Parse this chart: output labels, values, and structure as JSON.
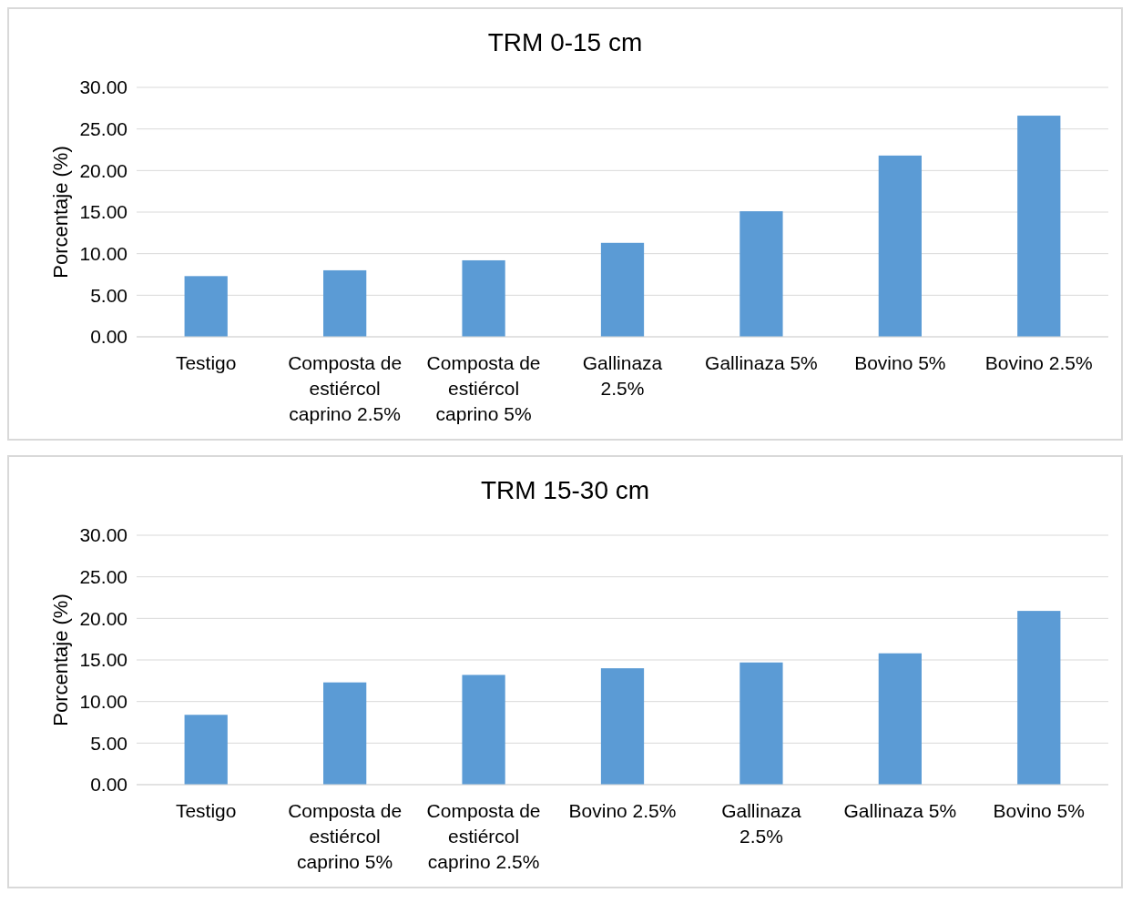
{
  "chart_data": [
    {
      "type": "bar",
      "title": "TRM 0-15 cm",
      "ylabel": "Porcentaje (%)",
      "categories": [
        "Testigo",
        "Composta de estiércol caprino 2.5%",
        "Composta de estiércol caprino 5%",
        "Gallinaza 2.5%",
        "Gallinaza 5%",
        "Bovino 5%",
        "Bovino 2.5%"
      ],
      "values": [
        7.3,
        8.0,
        9.2,
        11.3,
        15.1,
        21.8,
        26.6
      ],
      "color": "#5b9bd5",
      "ylim": [
        0,
        30
      ],
      "yticks": [
        {
          "value": 0,
          "label": "0.00"
        },
        {
          "value": 5,
          "label": "5.00"
        },
        {
          "value": 10,
          "label": "10.00"
        },
        {
          "value": 15,
          "label": "15.00"
        },
        {
          "value": 20,
          "label": "20.00"
        },
        {
          "value": 25,
          "label": "25.00"
        },
        {
          "value": 30,
          "label": "30.00"
        }
      ],
      "grid": "y"
    },
    {
      "type": "bar",
      "title": "TRM 15-30 cm",
      "ylabel": "Porcentaje (%)",
      "categories": [
        "Testigo",
        "Composta de estiércol caprino 5%",
        "Composta de estiércol caprino 2.5%",
        "Bovino 2.5%",
        "Gallinaza 2.5%",
        "Gallinaza 5%",
        "Bovino 5%"
      ],
      "values": [
        8.4,
        12.3,
        13.2,
        14.0,
        14.7,
        15.8,
        20.9
      ],
      "color": "#5b9bd5",
      "ylim": [
        0,
        30
      ],
      "yticks": [
        {
          "value": 0,
          "label": "0.00"
        },
        {
          "value": 5,
          "label": "5.00"
        },
        {
          "value": 10,
          "label": "10.00"
        },
        {
          "value": 15,
          "label": "15.00"
        },
        {
          "value": 20,
          "label": "20.00"
        },
        {
          "value": 25,
          "label": "25.00"
        },
        {
          "value": 30,
          "label": "30.00"
        }
      ],
      "grid": "y"
    }
  ]
}
